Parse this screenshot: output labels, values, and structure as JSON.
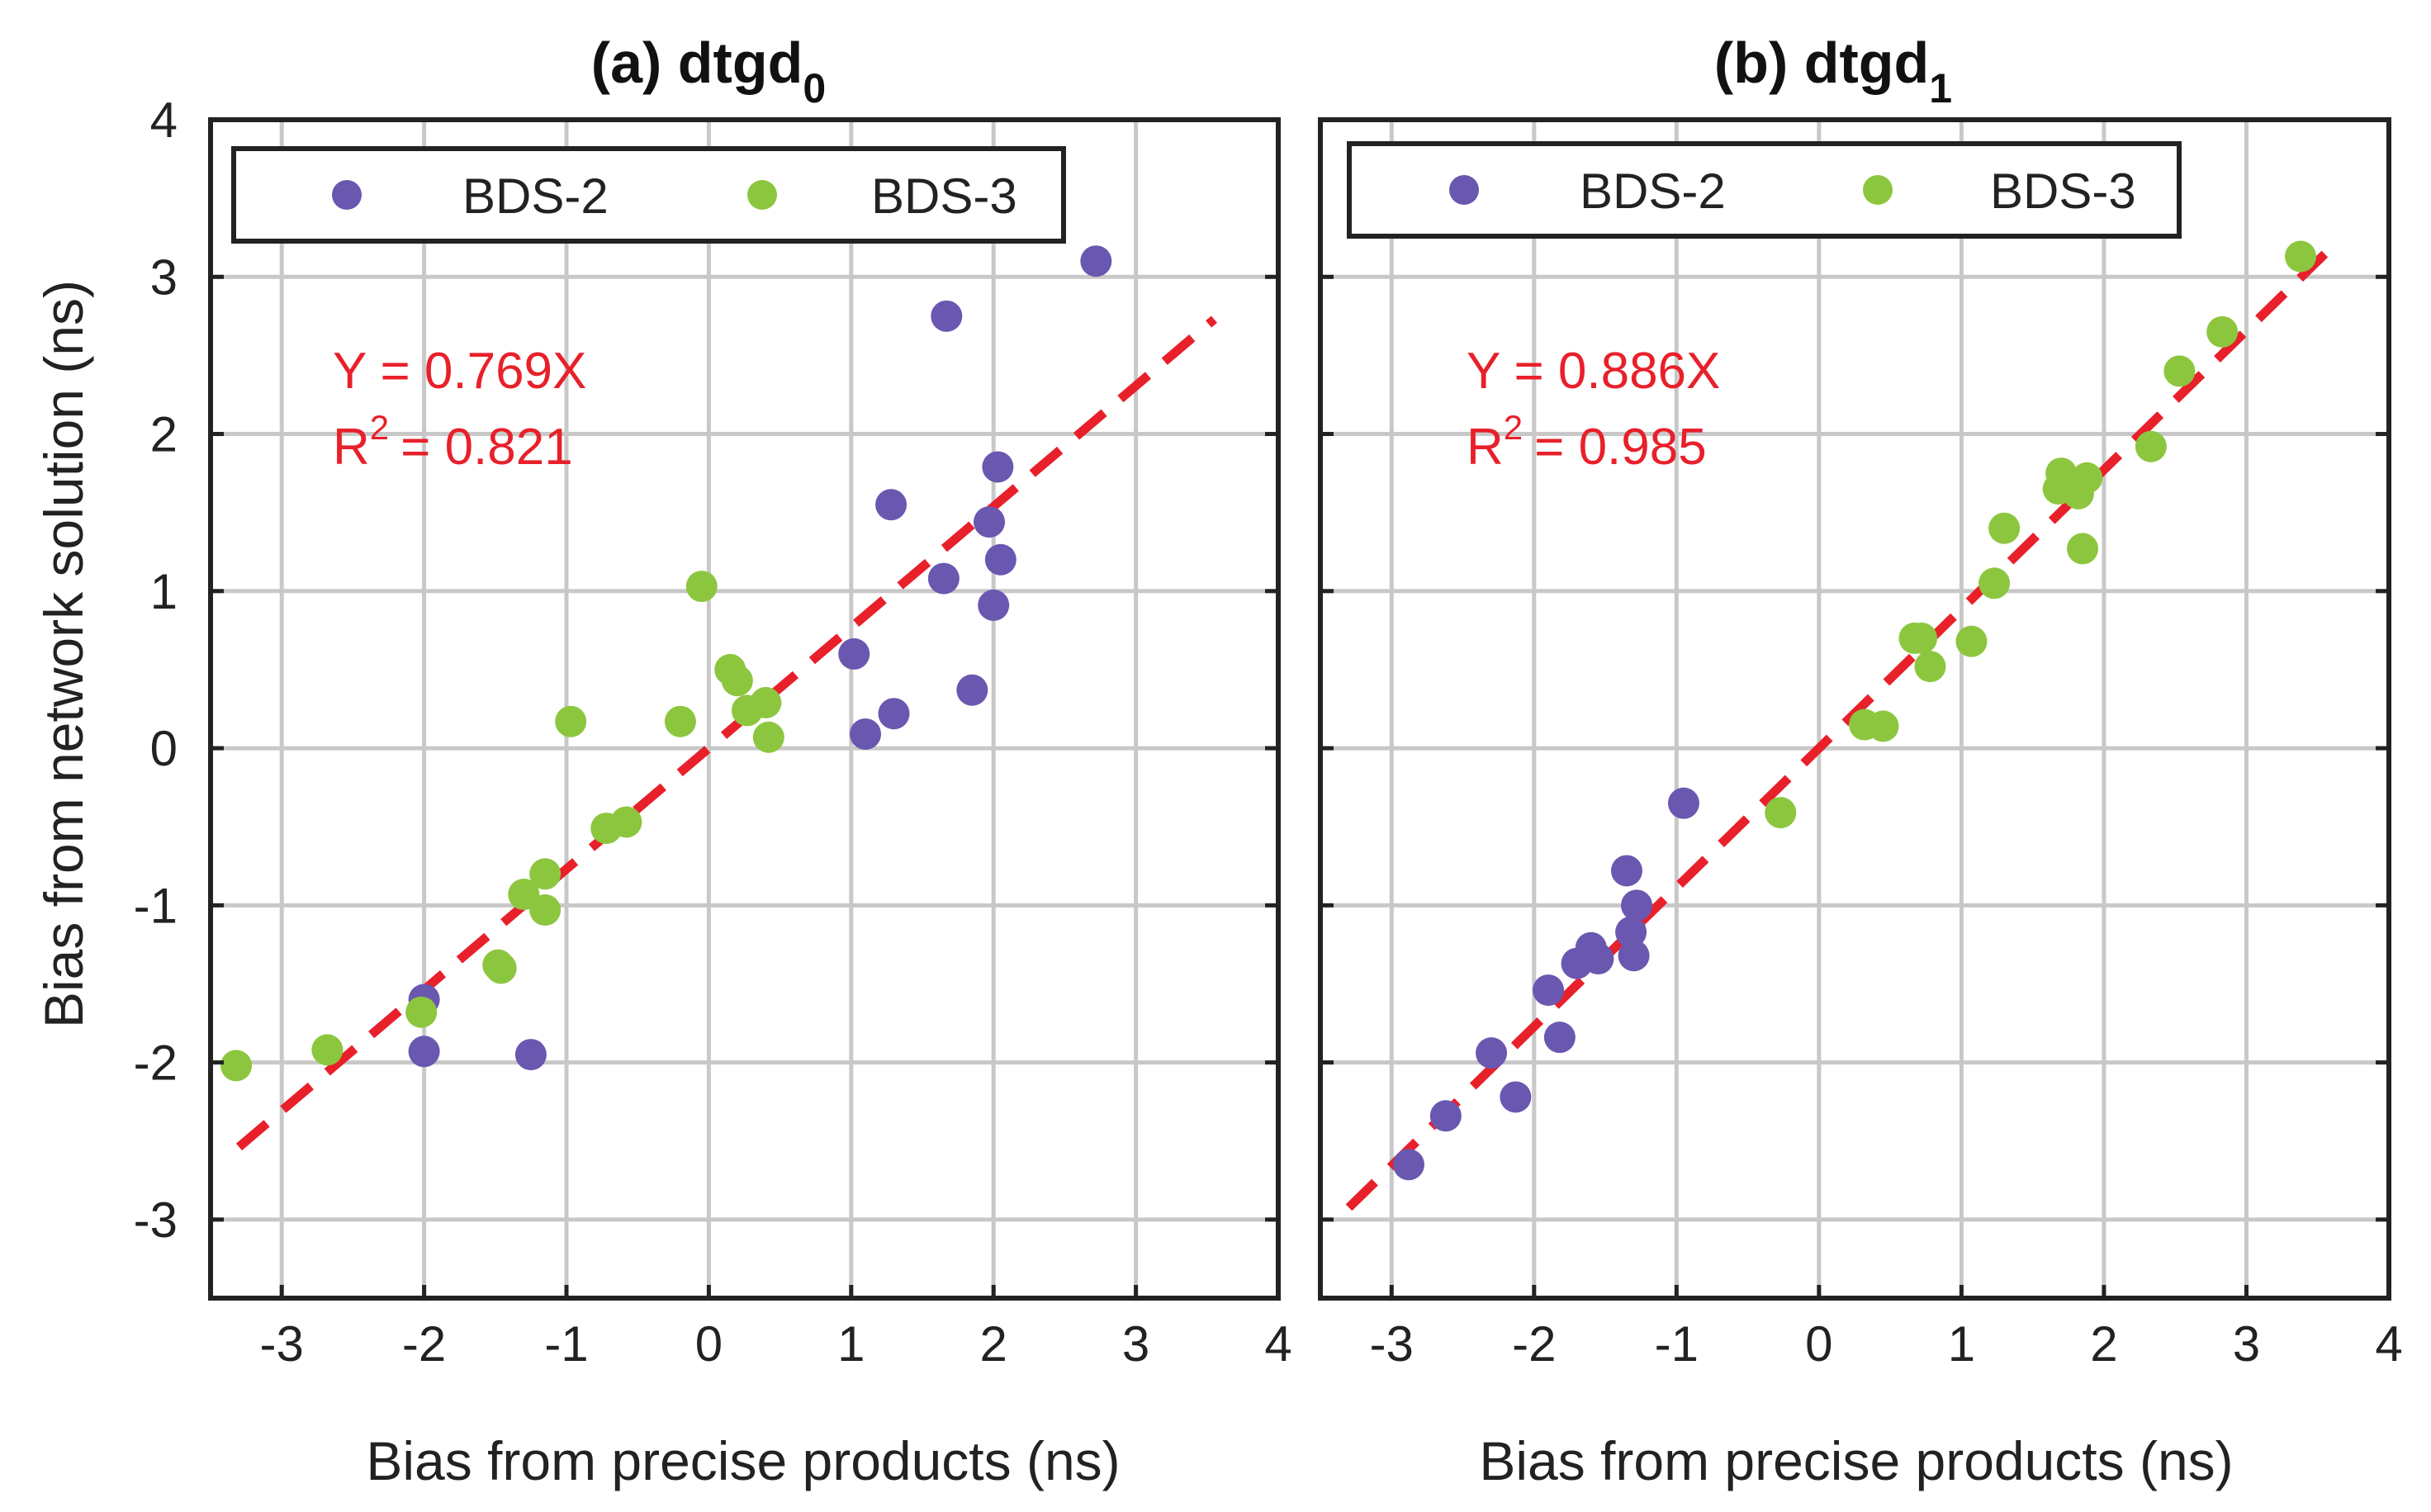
{
  "figure": {
    "y_axis_label": "Bias from network solution (ns)",
    "colors": {
      "bds2": "#6a57b0",
      "bds3": "#8cc63f",
      "fit_line": "#e8202a",
      "grid": "#c8c8c8",
      "axes": "#222222"
    }
  },
  "chart_data": [
    {
      "type": "scatter",
      "title_main": "(a) dtgd",
      "title_sub": "0",
      "xlabel": "Bias from precise products  (ns)",
      "ylabel": "Bias from network solution (ns)",
      "xlim": [
        -3.5,
        4
      ],
      "ylim": [
        -3.5,
        4
      ],
      "xticks": [
        -3,
        -2,
        -1,
        0,
        1,
        2,
        3,
        4
      ],
      "yticks": [
        -3,
        -2,
        -1,
        0,
        1,
        2,
        3,
        4
      ],
      "grid": true,
      "legend_position": "top",
      "series": [
        {
          "name": "BDS-2",
          "color": "#6a57b0",
          "points": [
            [
              -2.0,
              -1.6
            ],
            [
              -2.0,
              -1.93
            ],
            [
              -1.25,
              -1.95
            ],
            [
              1.02,
              0.6
            ],
            [
              1.1,
              0.09
            ],
            [
              1.28,
              1.55
            ],
            [
              1.3,
              0.22
            ],
            [
              1.65,
              1.08
            ],
            [
              1.67,
              2.75
            ],
            [
              1.85,
              0.37
            ],
            [
              1.97,
              1.44
            ],
            [
              2.0,
              0.91
            ],
            [
              2.03,
              1.79
            ],
            [
              2.05,
              1.2
            ],
            [
              2.72,
              3.1
            ]
          ]
        },
        {
          "name": "BDS-3",
          "color": "#8cc63f",
          "points": [
            [
              -3.32,
              -2.02
            ],
            [
              -2.68,
              -1.92
            ],
            [
              -2.02,
              -1.68
            ],
            [
              -1.48,
              -1.38
            ],
            [
              -1.46,
              -1.4
            ],
            [
              -1.3,
              -0.93
            ],
            [
              -1.15,
              -1.03
            ],
            [
              -1.15,
              -0.8
            ],
            [
              -0.97,
              0.17
            ],
            [
              -0.72,
              -0.51
            ],
            [
              -0.58,
              -0.47
            ],
            [
              -0.2,
              0.17
            ],
            [
              -0.05,
              1.03
            ],
            [
              0.15,
              0.5
            ],
            [
              0.2,
              0.43
            ],
            [
              0.27,
              0.24
            ],
            [
              0.4,
              0.29
            ],
            [
              0.42,
              0.07
            ]
          ]
        }
      ],
      "fit": {
        "slope": 0.769,
        "equation": "Y = 0.769X",
        "r2_prefix": "R",
        "r2_exp": "2",
        "r2_value": "= 0.821"
      }
    },
    {
      "type": "scatter",
      "title_main": "(b) dtgd",
      "title_sub": "1",
      "xlabel": "Bias from precise products (ns)",
      "ylabel": "",
      "xlim": [
        -3.5,
        4
      ],
      "ylim": [
        -3.5,
        4
      ],
      "xticks": [
        -3,
        -2,
        -1,
        0,
        1,
        2,
        3,
        4
      ],
      "yticks": [
        -3,
        -2,
        -1,
        0,
        1,
        2,
        3,
        4
      ],
      "grid": true,
      "legend_position": "top",
      "series": [
        {
          "name": "BDS-2",
          "color": "#6a57b0",
          "points": [
            [
              -2.88,
              -2.65
            ],
            [
              -2.62,
              -2.34
            ],
            [
              -2.3,
              -1.94
            ],
            [
              -2.13,
              -2.22
            ],
            [
              -1.9,
              -1.54
            ],
            [
              -1.82,
              -1.84
            ],
            [
              -1.7,
              -1.37
            ],
            [
              -1.6,
              -1.27
            ],
            [
              -1.55,
              -1.34
            ],
            [
              -1.35,
              -0.78
            ],
            [
              -1.32,
              -1.17
            ],
            [
              -1.3,
              -1.32
            ],
            [
              -1.28,
              -1.0
            ],
            [
              -0.95,
              -0.35
            ]
          ]
        },
        {
          "name": "BDS-3",
          "color": "#8cc63f",
          "points": [
            [
              -0.27,
              -0.41
            ],
            [
              0.32,
              0.15
            ],
            [
              0.45,
              0.14
            ],
            [
              0.67,
              0.7
            ],
            [
              0.72,
              0.7
            ],
            [
              0.78,
              0.52
            ],
            [
              1.07,
              0.68
            ],
            [
              1.23,
              1.05
            ],
            [
              1.3,
              1.4
            ],
            [
              1.68,
              1.65
            ],
            [
              1.7,
              1.75
            ],
            [
              1.82,
              1.62
            ],
            [
              1.85,
              1.27
            ],
            [
              1.88,
              1.72
            ],
            [
              2.33,
              1.92
            ],
            [
              2.53,
              2.4
            ],
            [
              2.83,
              2.65
            ],
            [
              3.38,
              3.13
            ]
          ]
        }
      ],
      "fit": {
        "slope": 0.886,
        "equation": "Y = 0.886X",
        "r2_prefix": "R",
        "r2_exp": "2",
        "r2_value": "= 0.985"
      }
    }
  ]
}
